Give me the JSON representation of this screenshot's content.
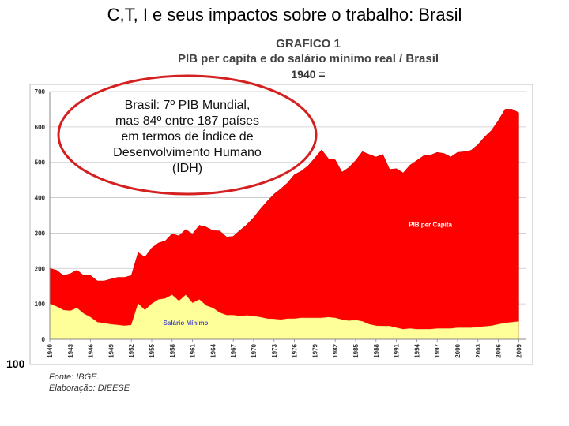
{
  "slide_title": "C,T, I e seus impactos sobre o trabalho: Brasil",
  "side_number": "100",
  "source_lines": [
    "Fonte: IBGE.",
    "Elaboração: DIEESE"
  ],
  "callout_lines": [
    "Brasil: 7º PIB Mundial,",
    "mas 84º entre 187 países",
    "em termos de Índice de",
    "Desenvolvimento Humano",
    "(IDH)"
  ],
  "colors": {
    "pib": "#ff0000",
    "salario": "#ffff99",
    "callout_border": "#d42020",
    "grid": "#c8c8c8"
  },
  "chart_data": {
    "type": "area",
    "title": [
      "GRAFICO 1",
      "PIB per capita e do salário mínimo real / Brasil",
      "1940 ="
    ],
    "xlabel": "",
    "ylabel": "",
    "xlim": [
      1940,
      2010
    ],
    "ylim": [
      0,
      700
    ],
    "y_ticks": [
      0,
      100,
      200,
      300,
      400,
      500,
      600,
      700
    ],
    "x_ticks": [
      1940,
      1943,
      1946,
      1949,
      1952,
      1955,
      1958,
      1961,
      1964,
      1967,
      1970,
      1973,
      1976,
      1979,
      1982,
      1985,
      1988,
      1991,
      1994,
      1997,
      2000,
      2003,
      2006,
      2009
    ],
    "series": [
      {
        "name": "PIB per Capita",
        "x": [
          1940,
          1941,
          1942,
          1943,
          1944,
          1945,
          1946,
          1947,
          1948,
          1949,
          1950,
          1951,
          1952,
          1953,
          1954,
          1955,
          1956,
          1957,
          1958,
          1959,
          1960,
          1961,
          1962,
          1963,
          1964,
          1965,
          1966,
          1967,
          1968,
          1969,
          1970,
          1971,
          1972,
          1973,
          1974,
          1975,
          1976,
          1977,
          1978,
          1979,
          1980,
          1981,
          1982,
          1983,
          1984,
          1985,
          1986,
          1987,
          1988,
          1989,
          1990,
          1991,
          1992,
          1993,
          1994,
          1995,
          1996,
          1997,
          1998,
          1999,
          2000,
          2001,
          2002,
          2003,
          2004,
          2005,
          2006,
          2007,
          2008,
          2009
        ],
        "values": [
          200,
          195,
          180,
          185,
          195,
          180,
          180,
          165,
          165,
          170,
          175,
          175,
          180,
          245,
          232,
          258,
          272,
          278,
          298,
          292,
          310,
          297,
          322,
          317,
          307,
          306,
          289,
          291,
          308,
          324,
          344,
          368,
          390,
          410,
          425,
          442,
          465,
          475,
          490,
          512,
          535,
          510,
          507,
          472,
          485,
          505,
          530,
          522,
          515,
          522,
          480,
          482,
          470,
          492,
          505,
          518,
          520,
          528,
          525,
          515,
          528,
          530,
          534,
          550,
          572,
          590,
          618,
          650,
          650,
          640
        ]
      },
      {
        "name": "Salário Mínimo",
        "x": [
          1940,
          1941,
          1942,
          1943,
          1944,
          1945,
          1946,
          1947,
          1948,
          1949,
          1950,
          1951,
          1952,
          1953,
          1954,
          1955,
          1956,
          1957,
          1958,
          1959,
          1960,
          1961,
          1962,
          1963,
          1964,
          1965,
          1966,
          1967,
          1968,
          1969,
          1970,
          1971,
          1972,
          1973,
          1974,
          1975,
          1976,
          1977,
          1978,
          1979,
          1980,
          1981,
          1982,
          1983,
          1984,
          1985,
          1986,
          1987,
          1988,
          1989,
          1990,
          1991,
          1992,
          1993,
          1994,
          1995,
          1996,
          1997,
          1998,
          1999,
          2000,
          2001,
          2002,
          2003,
          2004,
          2005,
          2006,
          2007,
          2008,
          2009
        ],
        "values": [
          100,
          92,
          82,
          80,
          88,
          72,
          62,
          48,
          45,
          42,
          40,
          38,
          40,
          100,
          82,
          100,
          112,
          115,
          125,
          108,
          125,
          102,
          112,
          95,
          88,
          75,
          68,
          68,
          65,
          67,
          65,
          62,
          58,
          57,
          55,
          58,
          58,
          60,
          60,
          60,
          60,
          62,
          60,
          55,
          52,
          54,
          50,
          42,
          38,
          37,
          37,
          32,
          28,
          30,
          28,
          28,
          28,
          30,
          30,
          30,
          32,
          32,
          32,
          34,
          36,
          38,
          42,
          46,
          48,
          50
        ]
      }
    ],
    "annotations": [
      "PIB per Capita",
      "Salário Mínimo"
    ]
  }
}
